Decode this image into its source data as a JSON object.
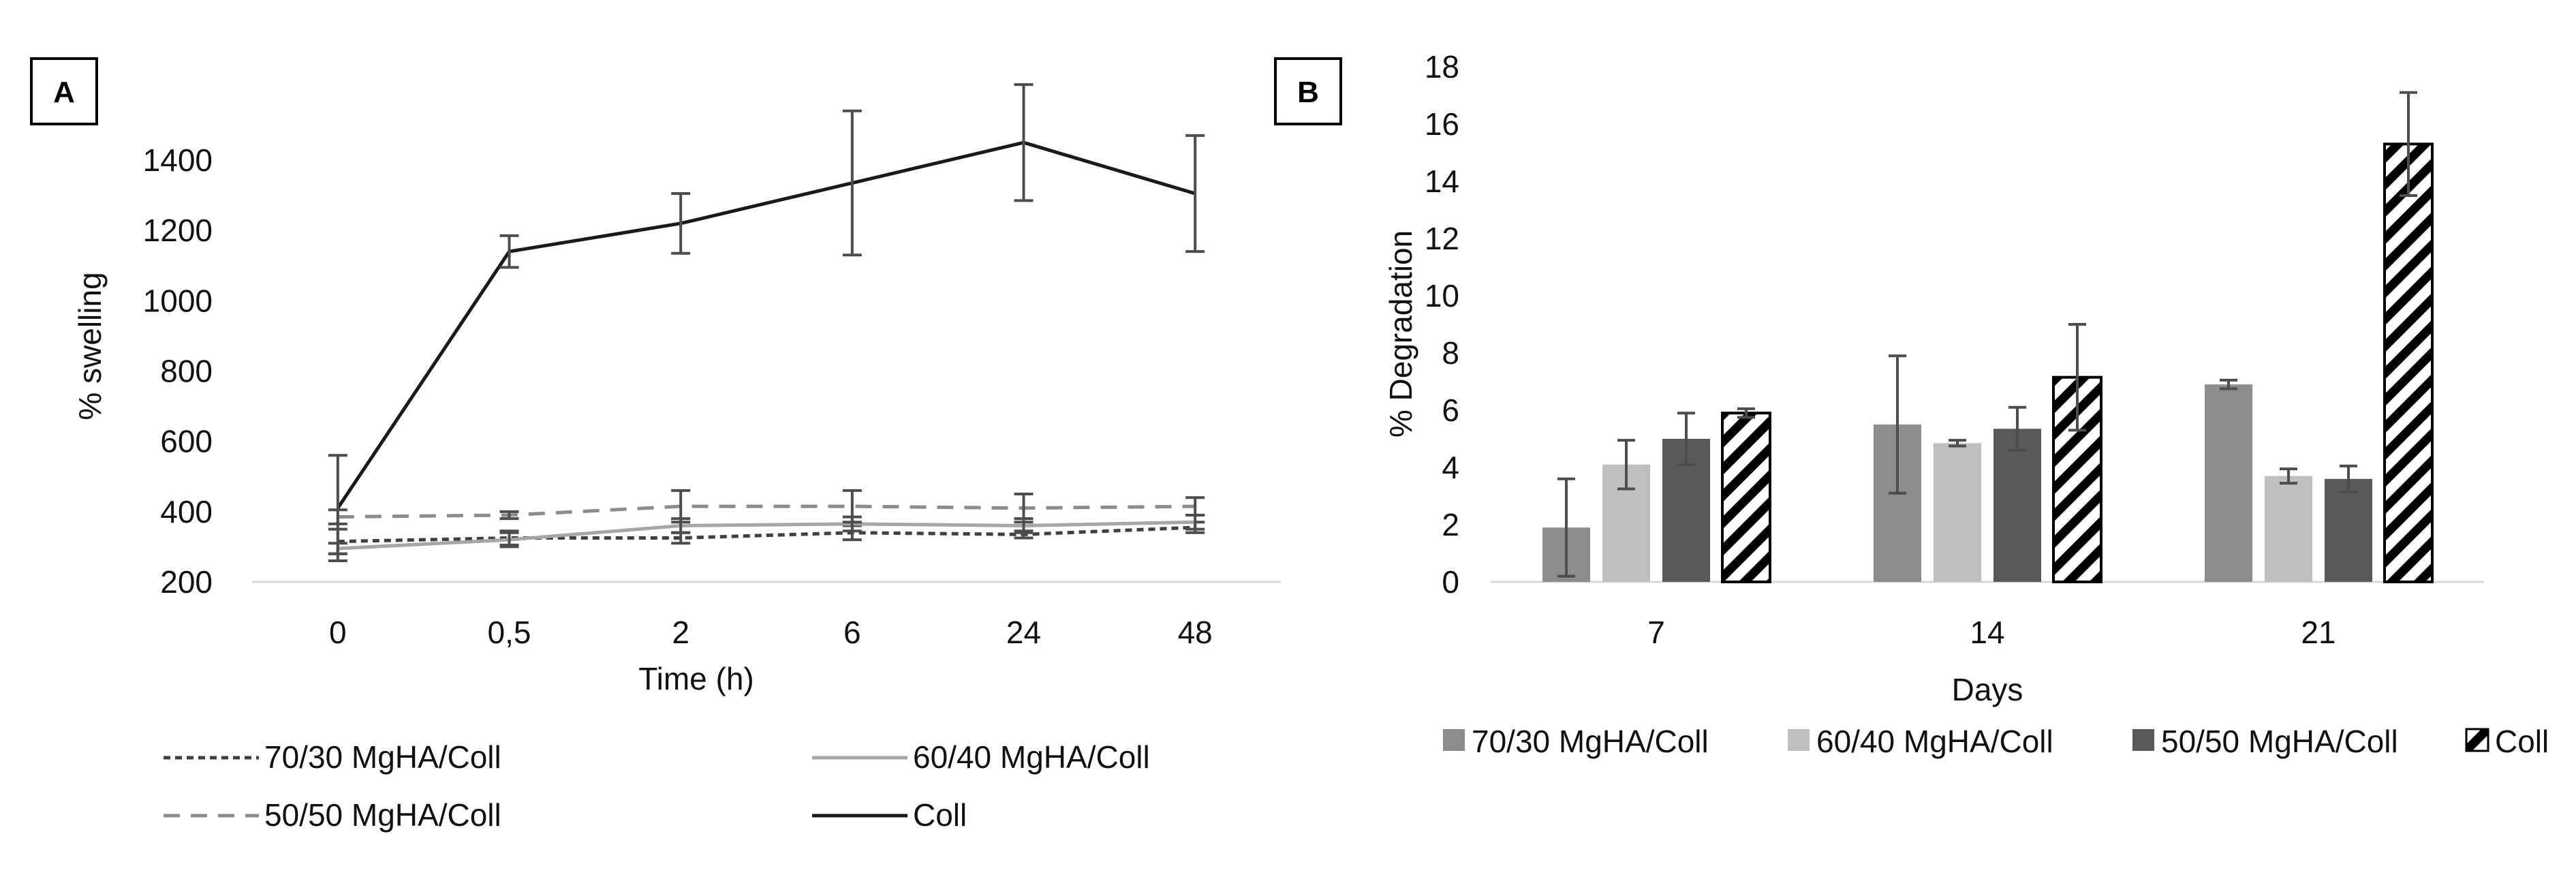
{
  "panels": [
    {
      "label": "A",
      "chart_data": {
        "type": "line",
        "title": "",
        "xlabel": "Time (h)",
        "ylabel": "% swelling",
        "categories": [
          "0",
          "0,5",
          "2",
          "6",
          "24",
          "48"
        ],
        "ylim": [
          200,
          1400
        ],
        "yticks": [
          200,
          400,
          600,
          800,
          1000,
          1200,
          1400
        ],
        "grid": false,
        "legend_position": "bottom",
        "series": [
          {
            "name": "70/30 MgHA/Coll",
            "style": "dotted",
            "color": "#404040",
            "values": [
              315,
              325,
              325,
              340,
              335,
              355
            ],
            "errors": [
              35,
              20,
              15,
              20,
              10,
              15
            ]
          },
          {
            "name": "60/40 MgHA/Coll",
            "style": "solid",
            "color": "#a6a6a6",
            "values": [
              295,
              320,
              360,
              365,
              360,
              370
            ],
            "errors": [
              15,
              20,
              20,
              20,
              20,
              20
            ]
          },
          {
            "name": "50/50 MgHA/Coll",
            "style": "dashed",
            "color": "#8c8c8c",
            "values": [
              385,
              390,
              415,
              415,
              410,
              415
            ],
            "errors": [
              20,
              10,
              45,
              45,
              40,
              25
            ]
          },
          {
            "name": "Coll",
            "style": "solid",
            "color": "#1a1a1a",
            "values": [
              410,
              1140,
              1220,
              1335,
              1450,
              1305
            ],
            "errors": [
              150,
              45,
              85,
              205,
              165,
              165
            ]
          }
        ]
      }
    },
    {
      "label": "B",
      "chart_data": {
        "type": "bar",
        "title": "",
        "xlabel": "Days",
        "ylabel": "% Degradation",
        "categories": [
          "7",
          "14",
          "21"
        ],
        "ylim": [
          0,
          18
        ],
        "yticks": [
          0,
          2,
          4,
          6,
          8,
          10,
          12,
          14,
          16,
          18
        ],
        "grid": false,
        "legend_position": "bottom",
        "series": [
          {
            "name": "70/30 MgHA/Coll",
            "color": "#8c8c8c",
            "pattern": "solid",
            "values": [
              1.9,
              5.5,
              6.9
            ],
            "errors": [
              1.7,
              2.4,
              0.15
            ]
          },
          {
            "name": "60/40 MgHA/Coll",
            "color": "#bfbfbf",
            "pattern": "solid",
            "values": [
              4.1,
              4.85,
              3.7
            ],
            "errors": [
              0.85,
              0.1,
              0.25
            ]
          },
          {
            "name": "50/50 MgHA/Coll",
            "color": "#595959",
            "pattern": "solid",
            "values": [
              5.0,
              5.35,
              3.6
            ],
            "errors": [
              0.9,
              0.75,
              0.45
            ]
          },
          {
            "name": "Coll",
            "color": "#000000",
            "pattern": "hatched",
            "values": [
              5.9,
              7.15,
              15.3
            ],
            "errors": [
              0.15,
              1.85,
              1.8
            ]
          }
        ]
      }
    }
  ]
}
